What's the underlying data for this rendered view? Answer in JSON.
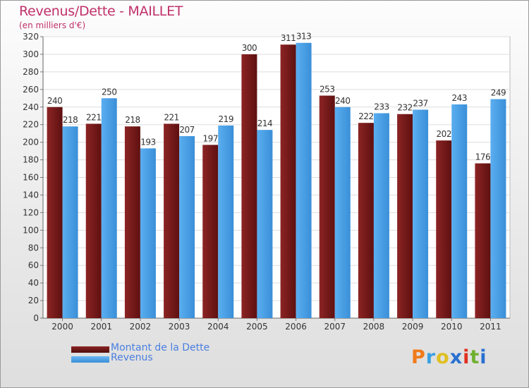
{
  "chart_data": {
    "type": "bar",
    "title": "Revenus/Dette - MAILLET",
    "subtitle": "(en milliers d'€)",
    "categories": [
      "2000",
      "2001",
      "2002",
      "2003",
      "2004",
      "2005",
      "2006",
      "2007",
      "2008",
      "2009",
      "2010",
      "2011"
    ],
    "series": [
      {
        "name": "Montant de la Dette",
        "color": "#7a1a1a",
        "values": [
          240,
          221,
          218,
          221,
          197,
          300,
          311,
          253,
          222,
          232,
          202,
          176
        ]
      },
      {
        "name": "Revenus",
        "color": "#4a9fe6",
        "values": [
          218,
          250,
          193,
          207,
          219,
          214,
          313,
          240,
          233,
          237,
          243,
          249
        ]
      }
    ],
    "ylim": [
      0,
      320
    ],
    "ytick_step": 20,
    "grid": true,
    "legend_position": "bottom-left"
  },
  "logo": {
    "text": "Proxiti",
    "colors": [
      "#f07a1a",
      "#3aa0e0",
      "#e0c020",
      "#2a70d0",
      "#e03020",
      "#70b030",
      "#2a70d0"
    ]
  }
}
